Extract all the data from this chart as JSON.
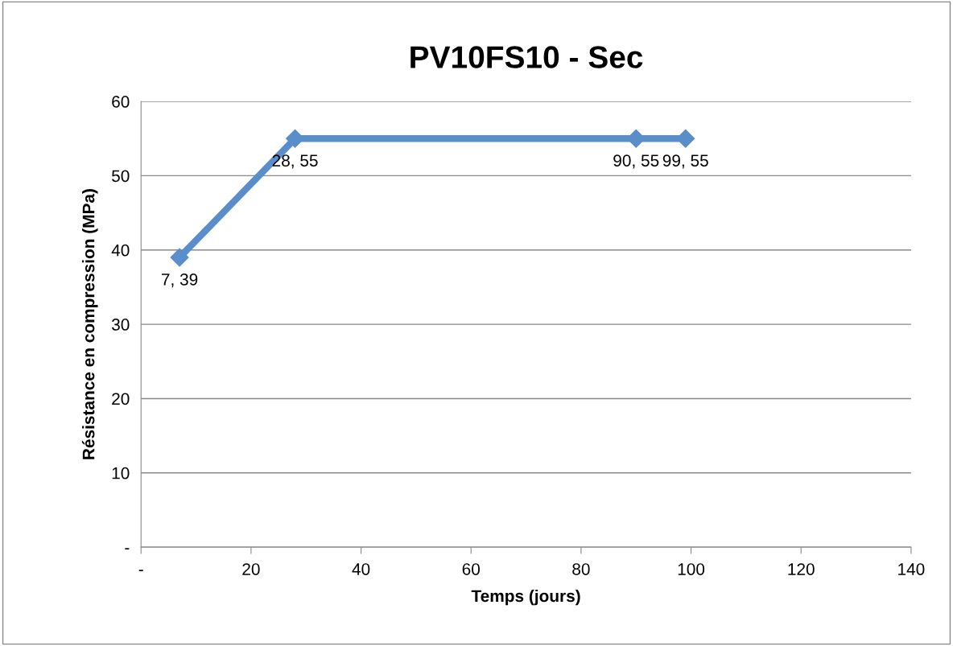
{
  "chart_data": {
    "type": "line",
    "title": "PV10FS10 - Sec",
    "xlabel": "Temps (jours)",
    "ylabel": "Résistance en compression (MPa)",
    "x": [
      7,
      28,
      90,
      99
    ],
    "series": [
      {
        "color": "#5a8ecb",
        "values": [
          39,
          55,
          55,
          55
        ],
        "value_labels": [
          "7, 39",
          "28, 55",
          "90, 55",
          "99, 55"
        ]
      }
    ],
    "xlim": [
      0,
      140
    ],
    "xticks": [
      {
        "value": 0,
        "label": "-"
      },
      20,
      40,
      60,
      80,
      100,
      120,
      140
    ],
    "ylim": [
      0,
      60
    ],
    "yticks": [
      {
        "value": 0,
        "label": "-"
      },
      10,
      20,
      30,
      40,
      50,
      60
    ],
    "grid": "y",
    "marker": "diamond",
    "line_style": "solid",
    "legend": false
  }
}
